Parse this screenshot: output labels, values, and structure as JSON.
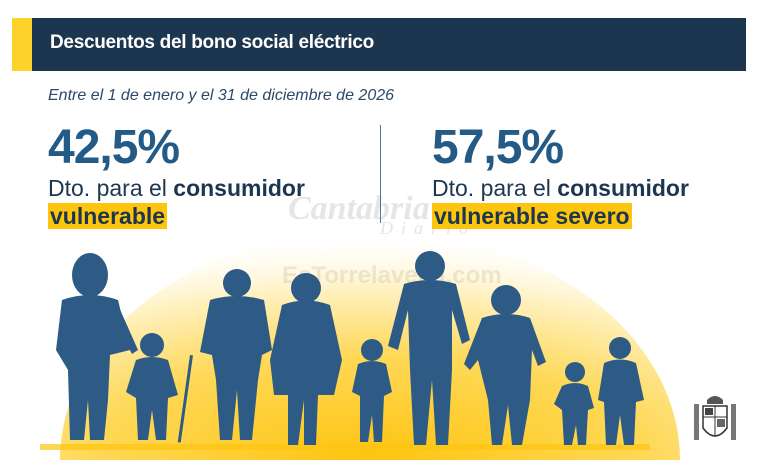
{
  "header": {
    "title": "Descuentos del bono social eléctrico"
  },
  "subtitle": "Entre el 1 de enero y el 31 de diciembre de 2026",
  "discounts": [
    {
      "value": "42,5%",
      "prefix": "Dto. para el",
      "bold": "consumidor",
      "highlight": "vulnerable"
    },
    {
      "value": "57,5%",
      "prefix": "Dto. para el",
      "bold": "consumidor",
      "highlight": "vulnerable severo"
    }
  ],
  "watermarks": [
    "Cantabria Diario",
    "EsTorrelavega.com"
  ],
  "colors": {
    "header_bg": "#1d3650",
    "accent_yellow": "#fdc60d",
    "number_blue": "#245b86",
    "silhouette": "#2d5b86"
  },
  "icons": [
    "family-silhouettes",
    "sun-glow",
    "spain-coat-of-arms-icon"
  ]
}
